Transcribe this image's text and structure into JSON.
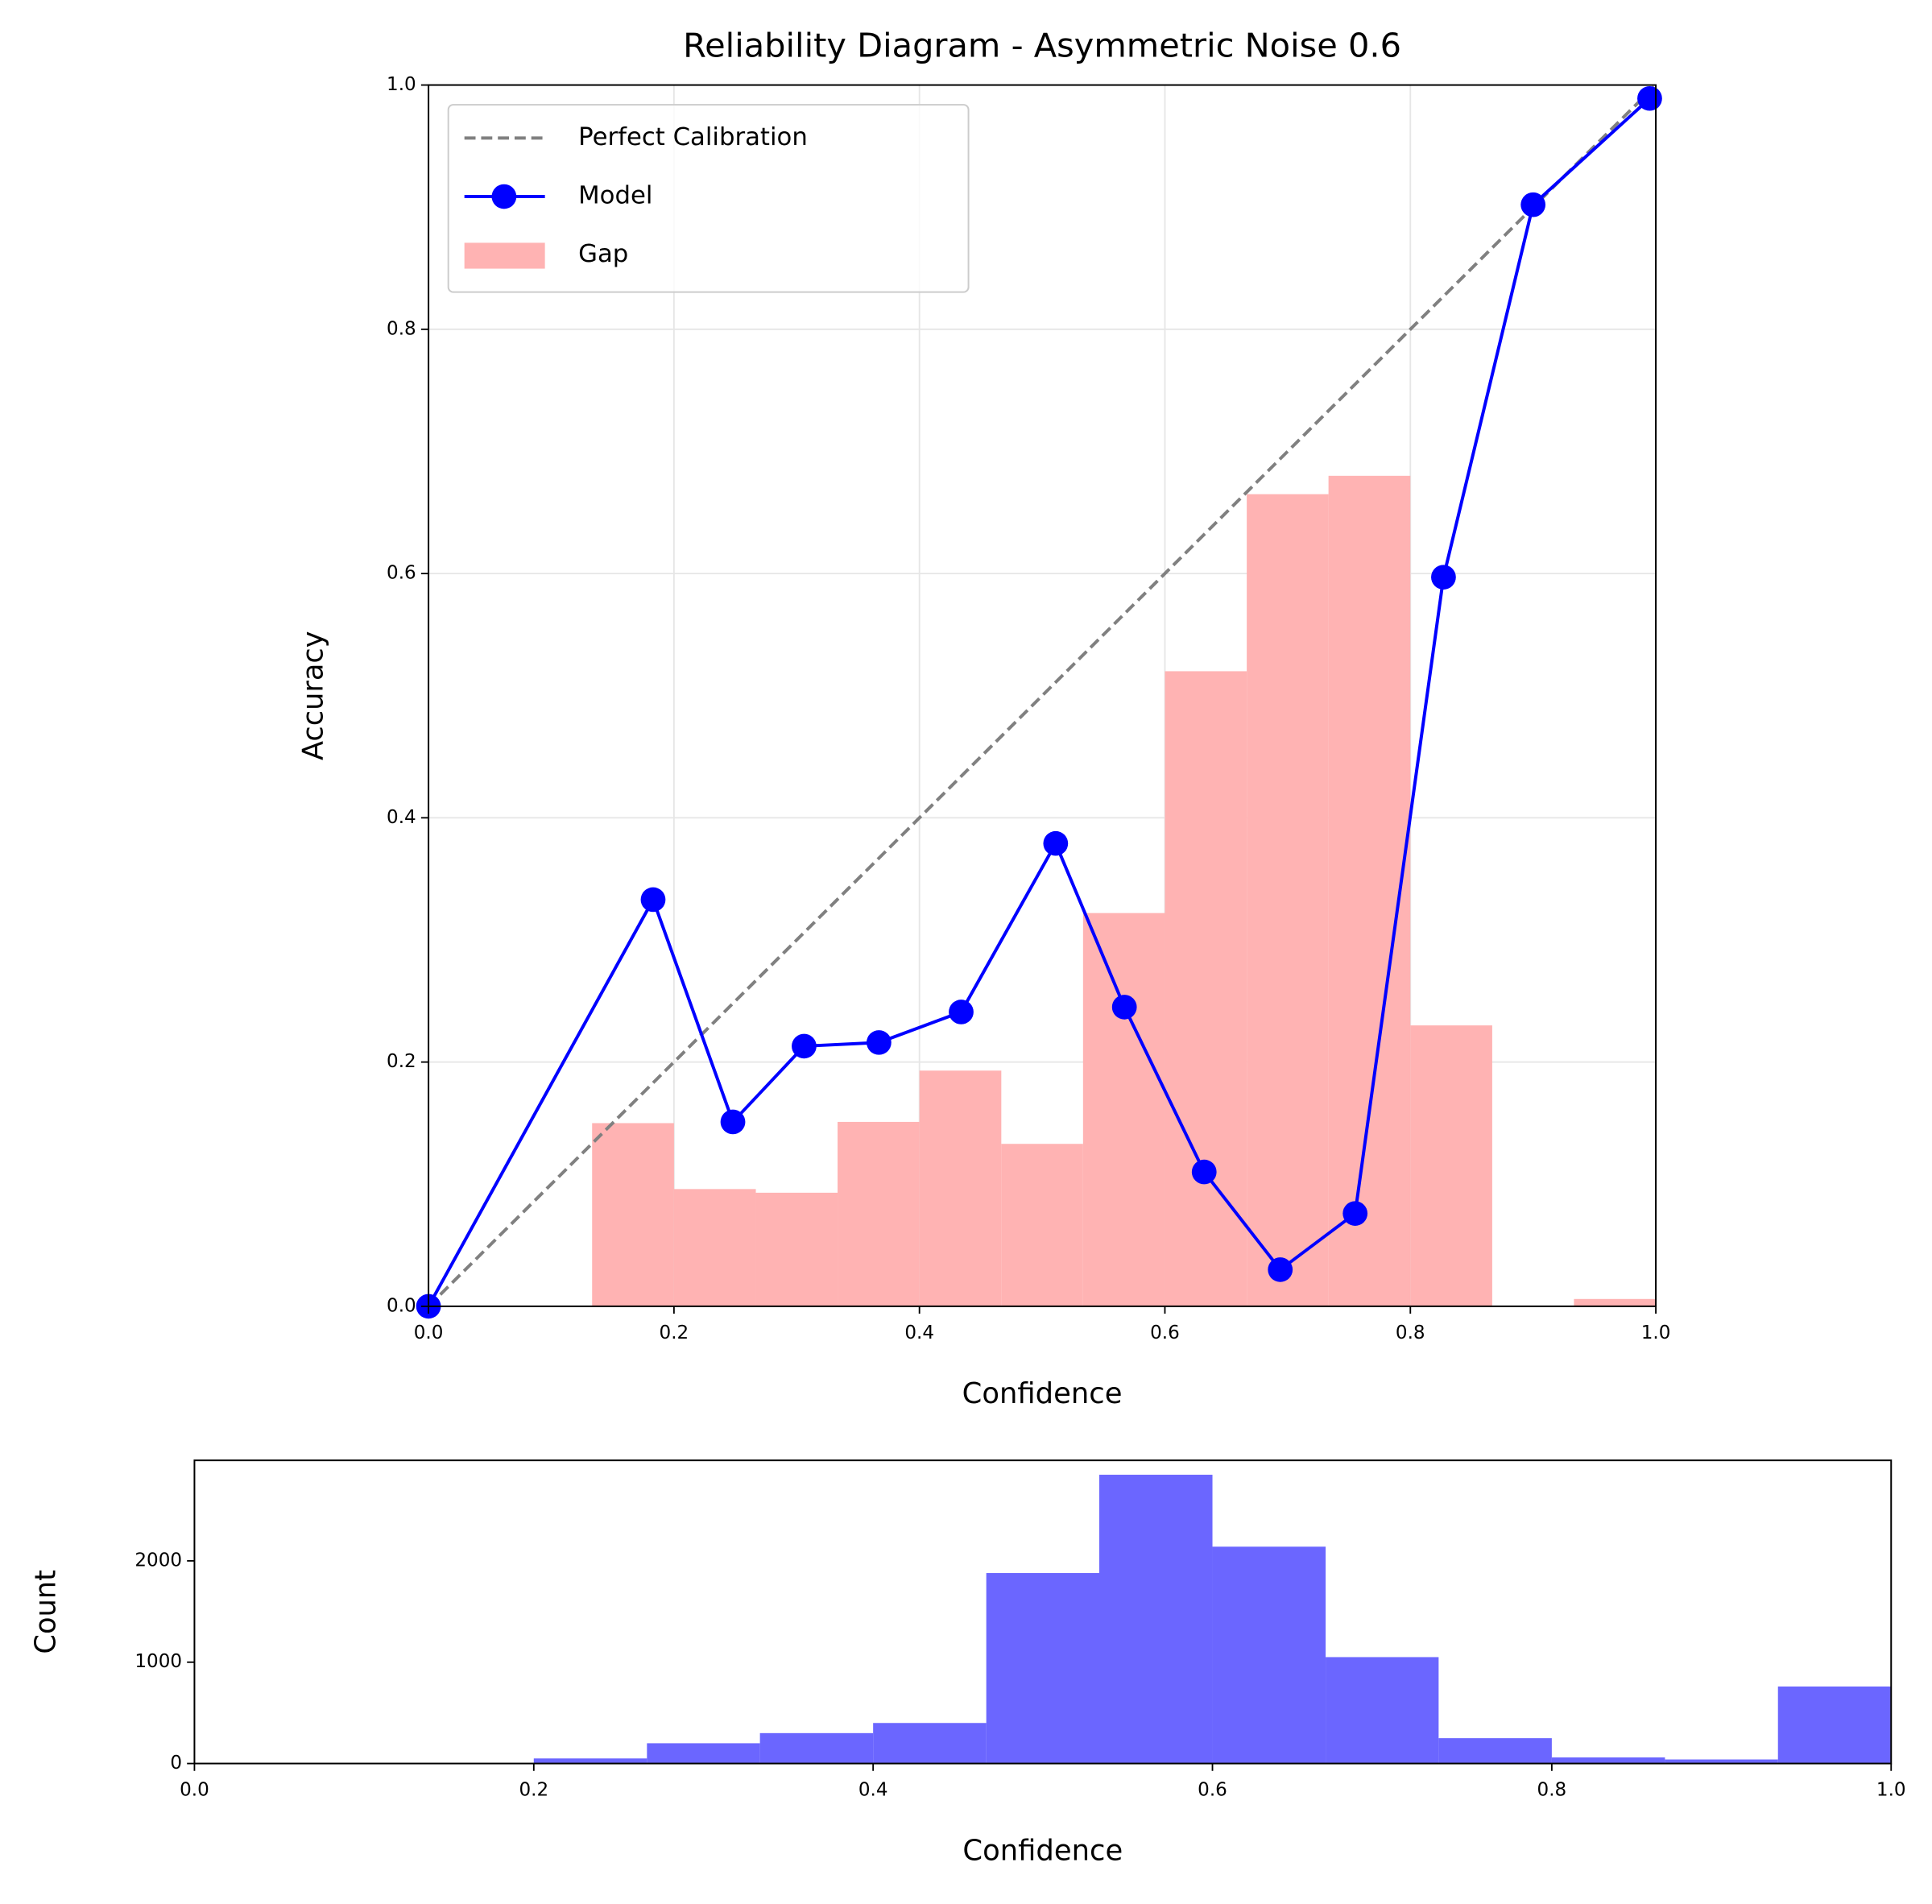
{
  "chart_data": [
    {
      "type": "line",
      "title": "Reliability Diagram - Asymmetric Noise 0.6",
      "x_label": "Confidence",
      "y_label": "Accuracy",
      "xlim": [
        0,
        1
      ],
      "ylim": [
        0,
        1
      ],
      "xticks": [
        {
          "value": 0,
          "label": "0.0"
        },
        {
          "value": 0.2,
          "label": "0.2"
        },
        {
          "value": 0.4,
          "label": "0.4"
        },
        {
          "value": 0.6,
          "label": "0.6"
        },
        {
          "value": 0.8,
          "label": "0.8"
        },
        {
          "value": 1,
          "label": "1.0"
        }
      ],
      "yticks": [
        {
          "value": 0,
          "label": "0.0"
        },
        {
          "value": 0.2,
          "label": "0.2"
        },
        {
          "value": 0.4,
          "label": "0.4"
        },
        {
          "value": 0.6,
          "label": "0.6"
        },
        {
          "value": 0.8,
          "label": "0.8"
        },
        {
          "value": 1,
          "label": "1.0"
        }
      ],
      "grid": true,
      "legend": "upper left",
      "series": [
        {
          "name": "Perfect Calibration",
          "color": "#808080",
          "style": "dashed",
          "x": [
            0,
            1
          ],
          "values": [
            0,
            1
          ]
        },
        {
          "name": "Model",
          "color": "#0000ff",
          "style": "marker",
          "x": [
            0,
            0.183,
            0.248,
            0.306,
            0.367,
            0.434,
            0.511,
            0.567,
            0.632,
            0.694,
            0.755,
            0.827,
            0.9,
            0.995
          ],
          "values": [
            0,
            0.333,
            0.151,
            0.213,
            0.216,
            0.241,
            0.379,
            0.245,
            0.11,
            0.03,
            0.076,
            0.597,
            0.902,
            0.989
          ]
        },
        {
          "name": "Gap",
          "color": "#ffb3b3",
          "style": "bar",
          "bins": [
            0,
            0.0667,
            0.1333,
            0.2,
            0.2667,
            0.3333,
            0.4,
            0.4667,
            0.5333,
            0.6,
            0.6667,
            0.7333,
            0.8,
            0.8667,
            0.9333,
            1
          ],
          "values": [
            0,
            0,
            0.15,
            0.096,
            0.093,
            0.151,
            0.193,
            0.133,
            0.322,
            0.52,
            0.665,
            0.68,
            0.23,
            0,
            0.006
          ]
        }
      ]
    },
    {
      "type": "histogram",
      "x_label": "Confidence",
      "y_label": "Count",
      "xlim": [
        0,
        1
      ],
      "ylim": [
        0,
        2992
      ],
      "xticks": [
        {
          "value": 0,
          "label": "0.0"
        },
        {
          "value": 0.2,
          "label": "0.2"
        },
        {
          "value": 0.4,
          "label": "0.4"
        },
        {
          "value": 0.6,
          "label": "0.6"
        },
        {
          "value": 0.8,
          "label": "0.8"
        },
        {
          "value": 1,
          "label": "1.0"
        }
      ],
      "yticks": [
        0,
        1000,
        2000
      ],
      "grid": false,
      "color": "#6b66ff",
      "bins": [
        0,
        0.0667,
        0.1333,
        0.2,
        0.2667,
        0.3333,
        0.4,
        0.4667,
        0.5333,
        0.6,
        0.6667,
        0.7333,
        0.8,
        0.8667,
        0.9333,
        1
      ],
      "values": [
        0,
        0,
        0,
        50,
        200,
        300,
        400,
        1880,
        2850,
        2140,
        1050,
        250,
        60,
        40,
        760
      ]
    }
  ]
}
